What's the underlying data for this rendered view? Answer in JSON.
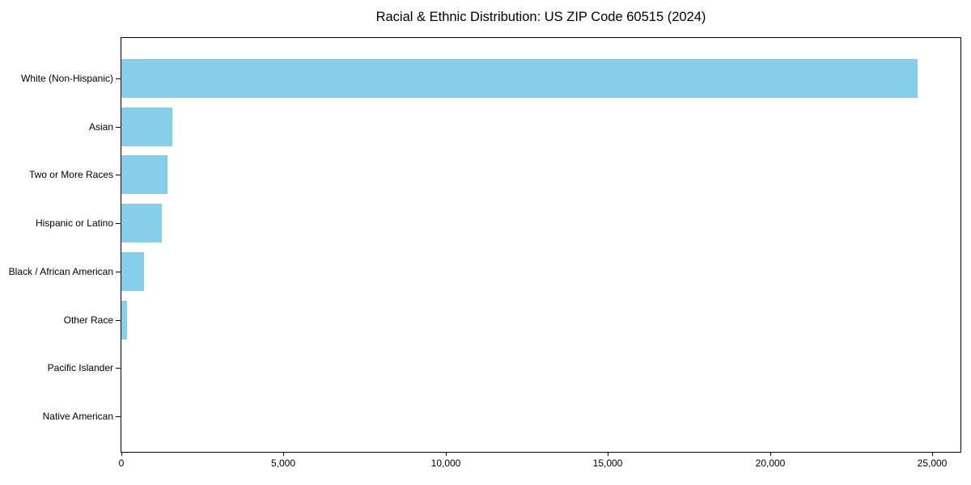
{
  "chart_data": {
    "type": "bar",
    "orientation": "horizontal",
    "title": "Racial & Ethnic Distribution: US ZIP Code 60515 (2024)",
    "categories": [
      "White (Non-Hispanic)",
      "Asian",
      "Two or More Races",
      "Hispanic or Latino",
      "Black / African American",
      "Other Race",
      "Pacific Islander",
      "Native American"
    ],
    "values": [
      24560,
      1570,
      1420,
      1250,
      710,
      180,
      0,
      0
    ],
    "xlabel": "",
    "ylabel": "",
    "xlim": [
      0,
      25870
    ],
    "x_ticks": [
      0,
      5000,
      10000,
      15000,
      20000,
      25000
    ],
    "x_tick_labels": [
      "0",
      "5,000",
      "10,000",
      "15,000",
      "20,000",
      "25,000"
    ],
    "bar_color": "#87CEEB",
    "axis_color": "#000000",
    "text_color": "#000000",
    "background": "#FFFFFF",
    "grid": false,
    "legend": false
  }
}
